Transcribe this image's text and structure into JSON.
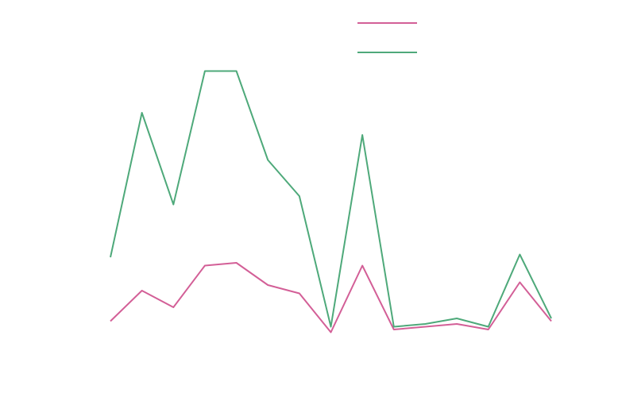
{
  "chart_data": {
    "type": "line",
    "categories": [
      null,
      null,
      null,
      null,
      null,
      null,
      null,
      null,
      null,
      null,
      null,
      null,
      null,
      null,
      null
    ],
    "series": [
      {
        "color": "#d35f97",
        "values": [
          13,
          24,
          18,
          33,
          34,
          26,
          23,
          9,
          33,
          10,
          11,
          12,
          10,
          27,
          13
        ]
      },
      {
        "color": "#4ea97a",
        "values": [
          36,
          88,
          55,
          103,
          103,
          71,
          58,
          11,
          80,
          11,
          12,
          14,
          11,
          37,
          14
        ]
      }
    ],
    "ylim": [
      0,
      120
    ],
    "legend": "upper-center"
  }
}
